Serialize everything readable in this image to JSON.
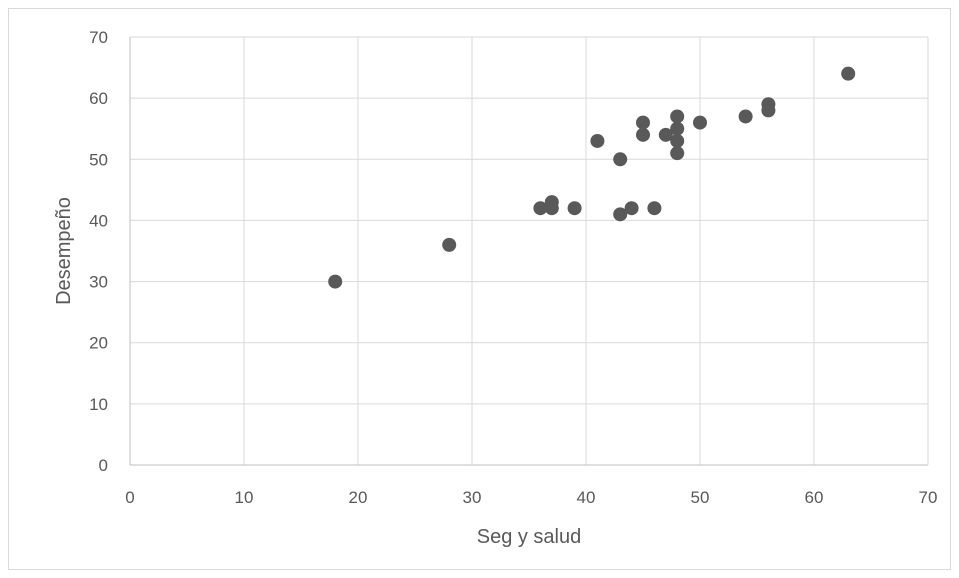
{
  "chart_data": {
    "type": "scatter",
    "title": "",
    "xlabel": "Seg y salud",
    "ylabel": "Desempeño",
    "xlim": [
      0,
      70
    ],
    "ylim": [
      0,
      70
    ],
    "xticks": [
      0,
      10,
      20,
      30,
      40,
      50,
      60,
      70
    ],
    "yticks": [
      0,
      10,
      20,
      30,
      40,
      50,
      60,
      70
    ],
    "grid": true,
    "legend": "none",
    "marker_color": "#595959",
    "gridline_color": "#d9d9d9",
    "points": [
      [
        18,
        30
      ],
      [
        28,
        36
      ],
      [
        36,
        42
      ],
      [
        37,
        43
      ],
      [
        37,
        42
      ],
      [
        39,
        42
      ],
      [
        41,
        53
      ],
      [
        43,
        50
      ],
      [
        43,
        41
      ],
      [
        44,
        42
      ],
      [
        45,
        56
      ],
      [
        45,
        54
      ],
      [
        46,
        42
      ],
      [
        47,
        54
      ],
      [
        48,
        57
      ],
      [
        48,
        55
      ],
      [
        48,
        53
      ],
      [
        48,
        51
      ],
      [
        50,
        56
      ],
      [
        54,
        57
      ],
      [
        56,
        59
      ],
      [
        56,
        58
      ],
      [
        63,
        64
      ]
    ]
  }
}
